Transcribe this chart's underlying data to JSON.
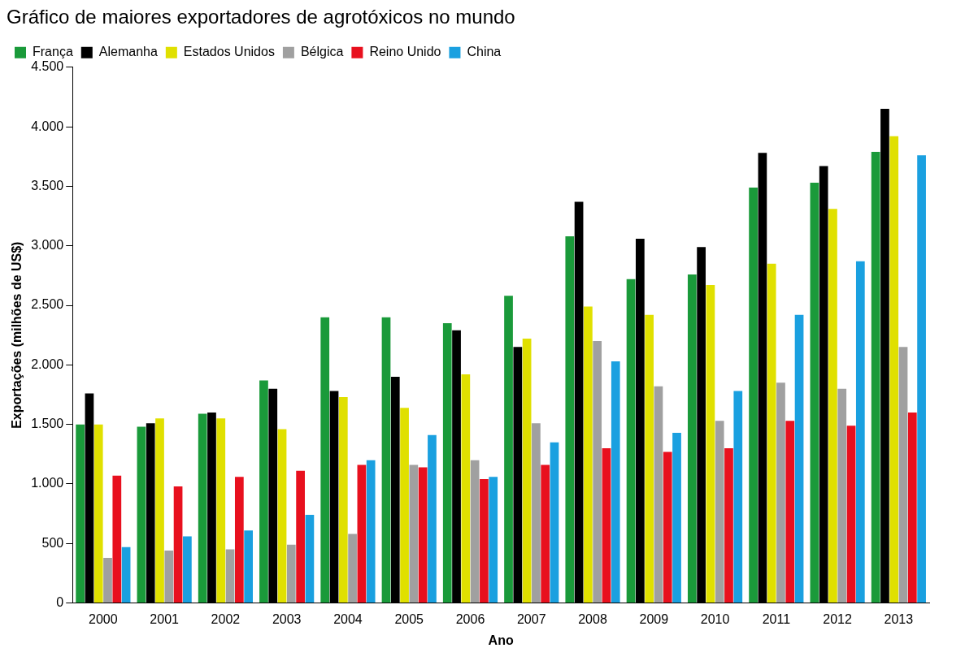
{
  "chart_data": {
    "type": "bar",
    "title": "Gráfico de maiores exportadores de agrotóxicos no mundo",
    "xlabel": "Ano",
    "ylabel": "Exportações (milhões de US$)",
    "categories": [
      "2000",
      "2001",
      "2002",
      "2003",
      "2004",
      "2005",
      "2006",
      "2007",
      "2008",
      "2009",
      "2010",
      "2011",
      "2012",
      "2013"
    ],
    "series": [
      {
        "name": "França",
        "color": "#1a9a3a",
        "values": [
          1500,
          1480,
          1590,
          1870,
          2400,
          2400,
          2350,
          2580,
          3080,
          2720,
          2760,
          3490,
          3530,
          3790
        ]
      },
      {
        "name": "Alemanha",
        "color": "#000000",
        "values": [
          1760,
          1510,
          1600,
          1800,
          1780,
          1900,
          2290,
          2150,
          3370,
          3060,
          2990,
          3780,
          3670,
          4150
        ]
      },
      {
        "name": "Estados Unidos",
        "color": "#e0e000",
        "values": [
          1500,
          1550,
          1550,
          1460,
          1730,
          1640,
          1920,
          2220,
          2490,
          2420,
          2670,
          2850,
          3310,
          3920
        ]
      },
      {
        "name": "Bélgica",
        "color": "#a0a0a0",
        "values": [
          380,
          440,
          450,
          490,
          580,
          1160,
          1200,
          1510,
          2200,
          1820,
          1530,
          1850,
          1800,
          2150
        ]
      },
      {
        "name": "Reino Unido",
        "color": "#e8101e",
        "values": [
          1070,
          980,
          1060,
          1110,
          1160,
          1140,
          1040,
          1160,
          1300,
          1270,
          1300,
          1530,
          1490,
          1600
        ]
      },
      {
        "name": "China",
        "color": "#1aa0e0",
        "values": [
          470,
          560,
          610,
          740,
          1200,
          1410,
          1060,
          1350,
          2030,
          1430,
          1780,
          2420,
          2870,
          3760
        ]
      }
    ],
    "ylim": [
      0,
      4500
    ],
    "yticks": [
      0,
      500,
      {
        "value": 1000,
        "label": "1.000"
      },
      {
        "value": 1500,
        "label": "1.500"
      },
      {
        "value": 2000,
        "label": "2.000"
      },
      {
        "value": 2500,
        "label": "2.500"
      },
      {
        "value": 3000,
        "label": "3.000"
      },
      {
        "value": 3500,
        "label": "3.500"
      },
      {
        "value": 4000,
        "label": "4.000"
      },
      {
        "value": 4500,
        "label": "4.500"
      }
    ],
    "grid": false,
    "legend": "top left"
  }
}
